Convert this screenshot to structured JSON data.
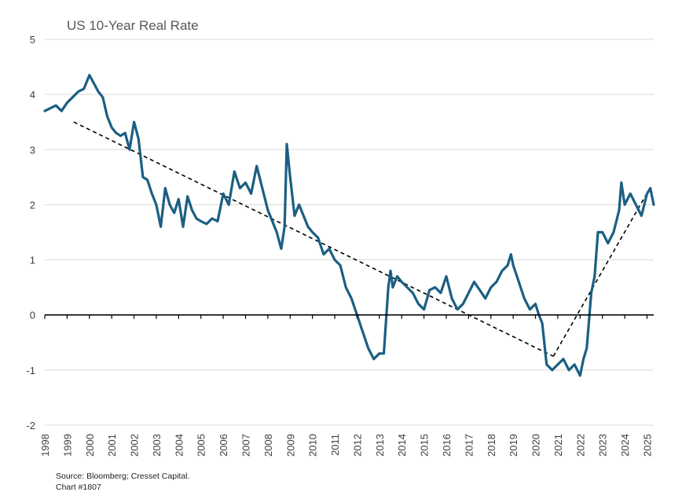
{
  "chart_data": {
    "type": "line",
    "title": "US 10-Year Real Rate",
    "xlabel": "",
    "ylabel": "",
    "ylim": [
      -2,
      5
    ],
    "xlim": [
      1998,
      2025.3
    ],
    "grid": true,
    "y_ticks": [
      5,
      4,
      3,
      2,
      1,
      0,
      -1,
      -2
    ],
    "x_ticks": [
      1998,
      1999,
      2000,
      2001,
      2002,
      2003,
      2004,
      2005,
      2006,
      2007,
      2008,
      2009,
      2010,
      2011,
      2012,
      2013,
      2014,
      2015,
      2016,
      2017,
      2018,
      2019,
      2020,
      2021,
      2022,
      2023,
      2024,
      2025
    ],
    "zero_line": true,
    "colors": {
      "series": "#1b5f82",
      "trend": "#000000",
      "grid": "#d9d9d9",
      "zero": "#000000"
    },
    "series": [
      {
        "x": [
          1998.0,
          1998.25,
          1998.5,
          1998.75,
          1999.0,
          1999.25,
          1999.5,
          1999.75,
          2000.0,
          2000.2,
          2000.4,
          2000.6,
          2000.8,
          2001.0,
          2001.2,
          2001.4,
          2001.6,
          2001.8,
          2002.0,
          2002.2,
          2002.4,
          2002.6,
          2002.8,
          2003.0,
          2003.2,
          2003.4,
          2003.6,
          2003.8,
          2004.0,
          2004.2,
          2004.4,
          2004.6,
          2004.8,
          2005.0,
          2005.25,
          2005.5,
          2005.75,
          2006.0,
          2006.25,
          2006.5,
          2006.75,
          2007.0,
          2007.25,
          2007.5,
          2007.75,
          2008.0,
          2008.2,
          2008.4,
          2008.6,
          2008.75,
          2008.85,
          2009.0,
          2009.2,
          2009.4,
          2009.6,
          2009.8,
          2010.0,
          2010.25,
          2010.5,
          2010.75,
          2011.0,
          2011.25,
          2011.5,
          2011.75,
          2012.0,
          2012.25,
          2012.5,
          2012.75,
          2013.0,
          2013.2,
          2013.4,
          2013.5,
          2013.6,
          2013.8,
          2014.0,
          2014.25,
          2014.5,
          2014.75,
          2015.0,
          2015.25,
          2015.5,
          2015.75,
          2016.0,
          2016.25,
          2016.5,
          2016.75,
          2017.0,
          2017.25,
          2017.5,
          2017.75,
          2018.0,
          2018.25,
          2018.5,
          2018.75,
          2018.9,
          2019.0,
          2019.25,
          2019.5,
          2019.75,
          2020.0,
          2020.15,
          2020.3,
          2020.5,
          2020.75,
          2021.0,
          2021.25,
          2021.5,
          2021.75,
          2022.0,
          2022.15,
          2022.3,
          2022.5,
          2022.65,
          2022.8,
          2023.0,
          2023.25,
          2023.5,
          2023.75,
          2023.85,
          2024.0,
          2024.25,
          2024.5,
          2024.75,
          2025.0,
          2025.15,
          2025.3
        ],
        "y": [
          3.7,
          3.75,
          3.8,
          3.7,
          3.85,
          3.95,
          4.05,
          4.1,
          4.35,
          4.2,
          4.05,
          3.95,
          3.6,
          3.4,
          3.3,
          3.25,
          3.3,
          3.0,
          3.5,
          3.2,
          2.5,
          2.45,
          2.2,
          2.0,
          1.6,
          2.3,
          2.0,
          1.85,
          2.1,
          1.6,
          2.15,
          1.9,
          1.75,
          1.7,
          1.65,
          1.75,
          1.7,
          2.2,
          2.0,
          2.6,
          2.3,
          2.4,
          2.2,
          2.7,
          2.3,
          1.9,
          1.7,
          1.5,
          1.2,
          1.6,
          3.1,
          2.5,
          1.8,
          2.0,
          1.8,
          1.6,
          1.5,
          1.4,
          1.1,
          1.2,
          1.0,
          0.9,
          0.5,
          0.3,
          0.0,
          -0.3,
          -0.6,
          -0.8,
          -0.7,
          -0.7,
          0.5,
          0.8,
          0.5,
          0.7,
          0.6,
          0.5,
          0.4,
          0.2,
          0.1,
          0.45,
          0.5,
          0.4,
          0.7,
          0.3,
          0.1,
          0.2,
          0.4,
          0.6,
          0.45,
          0.3,
          0.5,
          0.6,
          0.8,
          0.9,
          1.1,
          0.9,
          0.6,
          0.3,
          0.1,
          0.2,
          0.0,
          -0.15,
          -0.9,
          -1.0,
          -0.9,
          -0.8,
          -1.0,
          -0.9,
          -1.1,
          -0.8,
          -0.6,
          0.4,
          0.7,
          1.5,
          1.5,
          1.3,
          1.5,
          1.9,
          2.4,
          2.0,
          2.2,
          2.0,
          1.8,
          2.2,
          2.3,
          2.0
        ],
        "name": ""
      }
    ],
    "trendlines": [
      {
        "x": [
          1999.3,
          2020.8
        ],
        "y": [
          3.5,
          -0.75
        ]
      },
      {
        "x": [
          2020.8,
          2025.2
        ],
        "y": [
          -0.75,
          2.35
        ]
      }
    ]
  },
  "footnote": {
    "source": "Source: Bloomberg; Cresset Capital.",
    "chart_id": "Chart #1807"
  }
}
